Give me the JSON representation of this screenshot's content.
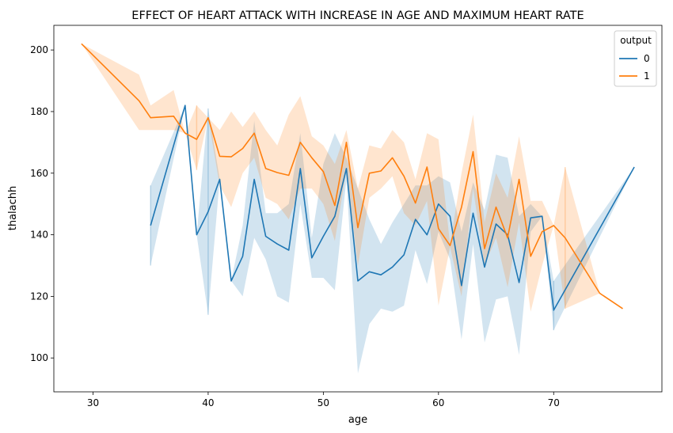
{
  "chart_data": {
    "type": "line",
    "title": "EFFECT OF HEART ATTACK WITH INCREASE IN AGE AND MAXIMUM HEART RATE",
    "xlabel": "age",
    "ylabel": "thalachh",
    "xlim": [
      26.6,
      79.4
    ],
    "ylim": [
      89,
      208
    ],
    "xticks": [
      30,
      40,
      50,
      60,
      70
    ],
    "yticks": [
      100,
      120,
      140,
      160,
      180,
      200
    ],
    "grid": false,
    "legend": {
      "title": "output",
      "placement": "top-right"
    },
    "series": [
      {
        "name": "0",
        "color": "#1f77b4",
        "band_color": "#1f77b4",
        "points": [
          {
            "x": 35,
            "y": 143,
            "lo": 130,
            "hi": 156
          },
          {
            "x": 38,
            "y": 182,
            "lo": 182,
            "hi": 182
          },
          {
            "x": 39,
            "y": 140,
            "lo": 140,
            "hi": 140
          },
          {
            "x": 40,
            "y": 147.5,
            "lo": 114,
            "hi": 181
          },
          {
            "x": 41,
            "y": 158,
            "lo": 158,
            "hi": 158
          },
          {
            "x": 42,
            "y": 125,
            "lo": 125,
            "hi": 125
          },
          {
            "x": 43,
            "y": 133,
            "lo": 120,
            "hi": 143
          },
          {
            "x": 44,
            "y": 158,
            "lo": 139,
            "hi": 177
          },
          {
            "x": 45,
            "y": 139.5,
            "lo": 132,
            "hi": 147
          },
          {
            "x": 46,
            "y": 137,
            "lo": 120,
            "hi": 147
          },
          {
            "x": 47,
            "y": 135,
            "lo": 118,
            "hi": 150
          },
          {
            "x": 48,
            "y": 161.5,
            "lo": 150,
            "hi": 173
          },
          {
            "x": 49,
            "y": 132.5,
            "lo": 126,
            "hi": 139
          },
          {
            "x": 50,
            "y": 139.5,
            "lo": 126,
            "hi": 163
          },
          {
            "x": 51,
            "y": 146,
            "lo": 122,
            "hi": 173
          },
          {
            "x": 52,
            "y": 161.5,
            "lo": 158,
            "hi": 165
          },
          {
            "x": 53,
            "y": 125,
            "lo": 95,
            "hi": 155
          },
          {
            "x": 54,
            "y": 128,
            "lo": 111,
            "hi": 145
          },
          {
            "x": 55,
            "y": 127,
            "lo": 116,
            "hi": 137
          },
          {
            "x": 56,
            "y": 129.5,
            "lo": 115,
            "hi": 144
          },
          {
            "x": 57,
            "y": 133.5,
            "lo": 117,
            "hi": 150
          },
          {
            "x": 58,
            "y": 145,
            "lo": 135,
            "hi": 156
          },
          {
            "x": 59,
            "y": 140,
            "lo": 124,
            "hi": 156
          },
          {
            "x": 60,
            "y": 150,
            "lo": 141,
            "hi": 159
          },
          {
            "x": 61,
            "y": 146,
            "lo": 132,
            "hi": 157
          },
          {
            "x": 62,
            "y": 123.5,
            "lo": 106,
            "hi": 141
          },
          {
            "x": 63,
            "y": 147,
            "lo": 137,
            "hi": 157
          },
          {
            "x": 64,
            "y": 129.5,
            "lo": 105,
            "hi": 148
          },
          {
            "x": 65,
            "y": 143.5,
            "lo": 119,
            "hi": 166
          },
          {
            "x": 66,
            "y": 140,
            "lo": 120,
            "hi": 165
          },
          {
            "x": 67,
            "y": 124.5,
            "lo": 101,
            "hi": 146
          },
          {
            "x": 68,
            "y": 145.5,
            "lo": 141,
            "hi": 150
          },
          {
            "x": 69,
            "y": 146,
            "lo": 146,
            "hi": 146
          },
          {
            "x": 70,
            "y": 115.5,
            "lo": 109,
            "hi": 125
          },
          {
            "x": 77,
            "y": 162,
            "lo": 162,
            "hi": 162
          }
        ]
      },
      {
        "name": "1",
        "color": "#ff7f0e",
        "band_color": "#ff7f0e",
        "points": [
          {
            "x": 29,
            "y": 202,
            "lo": 202,
            "hi": 202
          },
          {
            "x": 34,
            "y": 183.5,
            "lo": 174,
            "hi": 192
          },
          {
            "x": 35,
            "y": 178,
            "lo": 174,
            "hi": 182
          },
          {
            "x": 37,
            "y": 178.5,
            "lo": 174,
            "hi": 187
          },
          {
            "x": 38,
            "y": 173,
            "lo": 173,
            "hi": 173
          },
          {
            "x": 39,
            "y": 171,
            "lo": 161,
            "hi": 182
          },
          {
            "x": 40,
            "y": 178,
            "lo": 178,
            "hi": 178
          },
          {
            "x": 41,
            "y": 165.5,
            "lo": 156,
            "hi": 174
          },
          {
            "x": 42,
            "y": 165.3,
            "lo": 149,
            "hi": 180
          },
          {
            "x": 43,
            "y": 168,
            "lo": 160,
            "hi": 175
          },
          {
            "x": 44,
            "y": 173,
            "lo": 165,
            "hi": 180
          },
          {
            "x": 45,
            "y": 161.5,
            "lo": 152,
            "hi": 174
          },
          {
            "x": 46,
            "y": 160.2,
            "lo": 150,
            "hi": 169
          },
          {
            "x": 47,
            "y": 159.3,
            "lo": 145,
            "hi": 179
          },
          {
            "x": 48,
            "y": 170,
            "lo": 155,
            "hi": 185
          },
          {
            "x": 49,
            "y": 165,
            "lo": 155,
            "hi": 172
          },
          {
            "x": 50,
            "y": 160.5,
            "lo": 150,
            "hi": 169
          },
          {
            "x": 51,
            "y": 149.5,
            "lo": 138,
            "hi": 163
          },
          {
            "x": 52,
            "y": 170,
            "lo": 161,
            "hi": 174
          },
          {
            "x": 53,
            "y": 142.3,
            "lo": 130,
            "hi": 155
          },
          {
            "x": 54,
            "y": 160,
            "lo": 152,
            "hi": 169
          },
          {
            "x": 55,
            "y": 160.7,
            "lo": 155,
            "hi": 168
          },
          {
            "x": 56,
            "y": 165,
            "lo": 159,
            "hi": 174
          },
          {
            "x": 57,
            "y": 159,
            "lo": 147,
            "hi": 170
          },
          {
            "x": 58,
            "y": 150.3,
            "lo": 143,
            "hi": 158
          },
          {
            "x": 59,
            "y": 162,
            "lo": 151,
            "hi": 173
          },
          {
            "x": 60,
            "y": 142,
            "lo": 117,
            "hi": 171
          },
          {
            "x": 61,
            "y": 136.5,
            "lo": 136,
            "hi": 137
          },
          {
            "x": 62,
            "y": 149,
            "lo": 120,
            "hi": 160
          },
          {
            "x": 63,
            "y": 167,
            "lo": 155,
            "hi": 179
          },
          {
            "x": 64,
            "y": 135.5,
            "lo": 130,
            "hi": 144
          },
          {
            "x": 65,
            "y": 149,
            "lo": 139,
            "hi": 160
          },
          {
            "x": 66,
            "y": 139,
            "lo": 123,
            "hi": 152
          },
          {
            "x": 67,
            "y": 158,
            "lo": 144,
            "hi": 172
          },
          {
            "x": 68,
            "y": 133,
            "lo": 115,
            "hi": 151
          },
          {
            "x": 69,
            "y": 141,
            "lo": 130,
            "hi": 151
          },
          {
            "x": 70,
            "y": 143,
            "lo": 143,
            "hi": 143
          },
          {
            "x": 71,
            "y": 139,
            "lo": 116,
            "hi": 162
          },
          {
            "x": 74,
            "y": 121,
            "lo": 121,
            "hi": 121
          },
          {
            "x": 76,
            "y": 116,
            "lo": 116,
            "hi": 116
          }
        ]
      }
    ]
  }
}
